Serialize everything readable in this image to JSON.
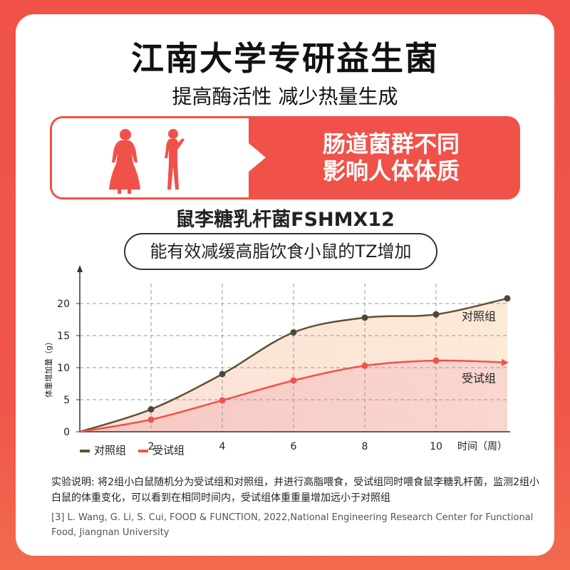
{
  "header": {
    "title": "江南大学专研益生菌",
    "subtitle": "提高酶活性 减少热量生成"
  },
  "banner": {
    "line1": "肠道菌群不同",
    "line2": "影响人体体质"
  },
  "strain_name": "鼠李糖乳杆菌FSHMX12",
  "claim": "能有效减缓高脂饮食小鼠的TZ增加",
  "colors": {
    "control": "#5e5232",
    "test": "#f0524a",
    "accent": "#f0524a"
  },
  "chart_data": {
    "type": "line",
    "ylabel": "体重增加量（g）",
    "xlabel": "时间（周）",
    "xlim": [
      0,
      12
    ],
    "ylim": [
      0,
      22
    ],
    "x_ticks": [
      "2",
      "4",
      "6",
      "8",
      "10"
    ],
    "y_ticks": [
      "0",
      "5",
      "10",
      "15",
      "20"
    ],
    "grid": true,
    "series": [
      {
        "name": "对照组",
        "x": [
          0,
          2,
          4,
          6,
          8,
          10,
          12
        ],
        "values": [
          0,
          3.5,
          9.0,
          15.5,
          17.8,
          18.3,
          20.8
        ]
      },
      {
        "name": "受试组",
        "x": [
          0,
          2,
          4,
          6,
          8,
          10,
          12
        ],
        "values": [
          0,
          1.9,
          4.9,
          8.0,
          10.3,
          11.1,
          10.8
        ]
      }
    ]
  },
  "legend": {
    "control_label": "对照组",
    "test_label": "受试组"
  },
  "note": "实验说明: 将2组小白鼠随机分为受试组和对照组，并进行高脂喂食，受试组同时喂食鼠李糖乳杆菌，监测2组小白鼠的体重变化，可以看到在相同时间内，受试组体重重量增加远小于对照组",
  "reference": "[3] L. Wang, G. Li, S. Cui, FOOD & FUNCTION, 2022,National Engineering Research Center for Functional Food, Jiangnan University"
}
